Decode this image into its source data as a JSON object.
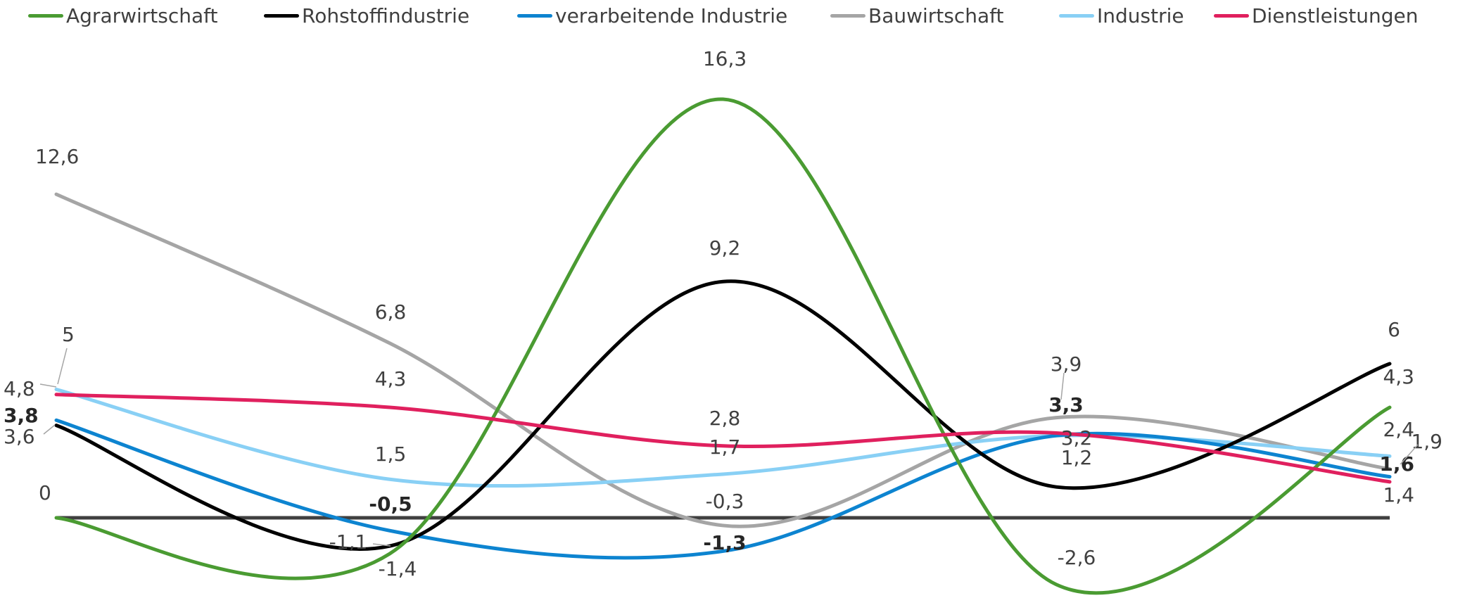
{
  "chart_data": {
    "type": "line",
    "title": "",
    "xlabel": "",
    "ylabel": "",
    "ylim": [
      -3.5,
      19.5
    ],
    "x": [
      0,
      1,
      2,
      3,
      4
    ],
    "grid": false,
    "legend_position": "top",
    "baseline_color": "#404040",
    "series": [
      {
        "name": "Agrarwirtschaft",
        "color": "#4a9b32",
        "values": [
          0,
          -1.4,
          16.3,
          -2.6,
          4.3
        ],
        "labels": [
          "0",
          "-1,4",
          "16,3",
          "-2,6",
          "4,3"
        ],
        "bold": [
          false,
          false,
          false,
          false,
          false
        ]
      },
      {
        "name": "Rohstoffindustrie",
        "color": "#000000",
        "values": [
          3.6,
          -1.1,
          9.2,
          1.2,
          6
        ],
        "labels": [
          "3,6",
          "-1,1",
          "9,2",
          "1,2",
          "6"
        ],
        "bold": [
          false,
          false,
          false,
          false,
          false
        ]
      },
      {
        "name": "verarbeitende Industrie",
        "color": "#0d84d0",
        "values": [
          3.8,
          -0.5,
          -1.3,
          3.2,
          1.6
        ],
        "labels": [
          "3,8",
          "-0,5",
          "-1,3",
          "3,2",
          "1,6"
        ],
        "bold": [
          true,
          true,
          true,
          false,
          true
        ]
      },
      {
        "name": "Bauwirtschaft",
        "color": "#a5a5a5",
        "values": [
          12.6,
          6.8,
          -0.3,
          3.9,
          1.9
        ],
        "labels": [
          "12,6",
          "6,8",
          "-0,3",
          "3,9",
          "1,9"
        ],
        "bold": [
          false,
          false,
          false,
          false,
          false
        ]
      },
      {
        "name": "Industrie",
        "color": "#89d0f5",
        "values": [
          5,
          1.5,
          1.7,
          3.2,
          2.4
        ],
        "labels": [
          "5",
          "1,5",
          "1,7",
          "",
          "2,4"
        ],
        "bold": [
          false,
          false,
          false,
          false,
          false
        ]
      },
      {
        "name": "Dienstleistungen",
        "color": "#e0205e",
        "values": [
          4.8,
          4.3,
          2.8,
          3.3,
          1.4
        ],
        "labels": [
          "4,8",
          "4,3",
          "2,8",
          "3,3",
          "1,4"
        ],
        "bold": [
          false,
          false,
          false,
          true,
          false
        ]
      }
    ]
  }
}
